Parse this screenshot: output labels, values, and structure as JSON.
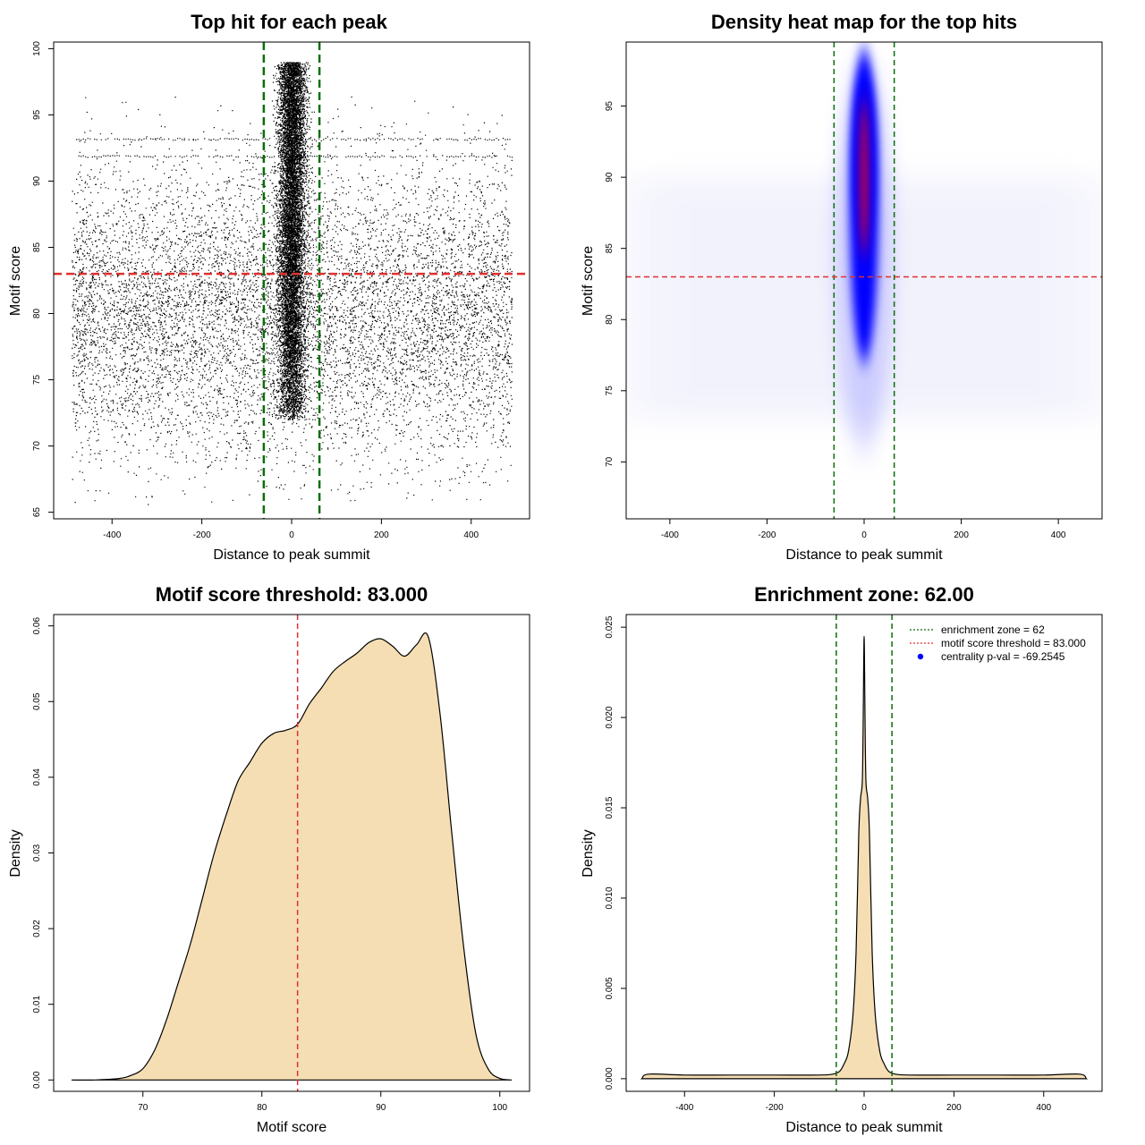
{
  "colors": {
    "background": "#ffffff",
    "axis": "#000000",
    "points": "#000000",
    "zone_line": "#0a6e0a",
    "threshold_line": "#e03030",
    "density_fill": "#f5deb3",
    "heat_mid": "#0000ff",
    "heat_high": "#ff0000",
    "legend_dot": "#0000ff"
  },
  "chart_data": [
    {
      "type": "scatter",
      "title": "Top hit for each peak",
      "xlabel": "Distance to peak summit",
      "ylabel": "Motif score",
      "xlim": [
        -530,
        530
      ],
      "ylim": [
        64.5,
        100.5
      ],
      "xticks": [
        -400,
        -200,
        0,
        200,
        400
      ],
      "yticks": [
        65,
        70,
        75,
        80,
        85,
        90,
        95,
        100
      ],
      "vlines": [
        -62,
        62
      ],
      "hline": 83,
      "background_cloud": {
        "x_range": [
          -490,
          490
        ],
        "score_mean": 80,
        "score_sd": 5.5,
        "approx_points": 9000
      },
      "central_cluster": {
        "x_center": 0,
        "x_sd": 15,
        "score_range": [
          72,
          99
        ],
        "approx_points": 14000
      },
      "horizontal_streak_scores": [
        93.2,
        91.9
      ]
    },
    {
      "type": "heatmap",
      "title": "Density heat map for the top hits",
      "xlabel": "Distance to peak summit",
      "ylabel": "Motif score",
      "xlim": [
        -490,
        490
      ],
      "ylim": [
        66,
        99.5
      ],
      "xticks": [
        -400,
        -200,
        0,
        200,
        400
      ],
      "yticks": [
        70,
        75,
        80,
        85,
        90,
        95
      ],
      "vlines": [
        -62,
        62
      ],
      "hline": 83,
      "hotspot": {
        "x": 0,
        "y": 90,
        "y_extent": [
          72,
          97
        ]
      }
    },
    {
      "type": "area",
      "title": "Motif score threshold: 83.000",
      "xlabel": "Motif score",
      "ylabel": "Density",
      "xlim": [
        62.5,
        102.5
      ],
      "ylim": [
        -0.0015,
        0.0615
      ],
      "xticks": [
        70,
        80,
        90,
        100
      ],
      "yticks": [
        0.0,
        0.01,
        0.02,
        0.03,
        0.04,
        0.05,
        0.06
      ],
      "ytick_labels": [
        "0.00",
        "0.01",
        "0.02",
        "0.03",
        "0.04",
        "0.05",
        "0.06"
      ],
      "vline": 83,
      "x": [
        64,
        66,
        68,
        69,
        70,
        71,
        72,
        73,
        74,
        75,
        76,
        77,
        78,
        79,
        80,
        81,
        82,
        83,
        84,
        85,
        86,
        87,
        88,
        89,
        90,
        91,
        92,
        93,
        94,
        95,
        96,
        97,
        98,
        99,
        100,
        101
      ],
      "y": [
        0.0,
        0.0,
        0.0002,
        0.0006,
        0.0015,
        0.004,
        0.008,
        0.013,
        0.018,
        0.024,
        0.03,
        0.035,
        0.0395,
        0.042,
        0.0445,
        0.0458,
        0.0462,
        0.047,
        0.0497,
        0.0518,
        0.054,
        0.0553,
        0.0564,
        0.0578,
        0.0583,
        0.0573,
        0.056,
        0.0575,
        0.0585,
        0.048,
        0.032,
        0.017,
        0.006,
        0.0015,
        0.0002,
        0.0
      ]
    },
    {
      "type": "area",
      "title": "Enrichment zone: 62.00",
      "xlabel": "Distance to peak summit",
      "ylabel": "Density",
      "xlim": [
        -530,
        530
      ],
      "ylim": [
        -0.0007,
        0.0257
      ],
      "xticks": [
        -400,
        -200,
        0,
        200,
        400
      ],
      "yticks": [
        0.0,
        0.005,
        0.01,
        0.015,
        0.02,
        0.025
      ],
      "ytick_labels": [
        "0.000",
        "0.005",
        "0.010",
        "0.015",
        "0.020",
        "0.025"
      ],
      "vlines": [
        -62,
        62
      ],
      "x": [
        -495,
        -480,
        -400,
        -300,
        -200,
        -100,
        -70,
        -55,
        -45,
        -35,
        -25,
        -18,
        -12,
        -8,
        -4,
        -2,
        0,
        2,
        4,
        8,
        12,
        18,
        25,
        35,
        45,
        55,
        70,
        100,
        200,
        300,
        400,
        480,
        495
      ],
      "y": [
        0.0,
        0.00025,
        0.0002,
        0.0002,
        0.0002,
        0.0002,
        0.00025,
        0.0004,
        0.0008,
        0.0015,
        0.0035,
        0.007,
        0.0135,
        0.0155,
        0.0165,
        0.02,
        0.0245,
        0.02,
        0.0165,
        0.0155,
        0.0135,
        0.007,
        0.0035,
        0.0015,
        0.0008,
        0.0004,
        0.00025,
        0.0002,
        0.0002,
        0.0002,
        0.0002,
        0.00025,
        0.0
      ],
      "legend": [
        {
          "label": "enrichment zone = 62",
          "style": "dotted-line",
          "color": "#0a6e0a"
        },
        {
          "label": "motif score threshold = 83.000",
          "style": "dotted-line",
          "color": "#e03030"
        },
        {
          "label": "centrality p-val = -69.2545",
          "style": "dot",
          "color": "#0000ff"
        }
      ]
    }
  ]
}
